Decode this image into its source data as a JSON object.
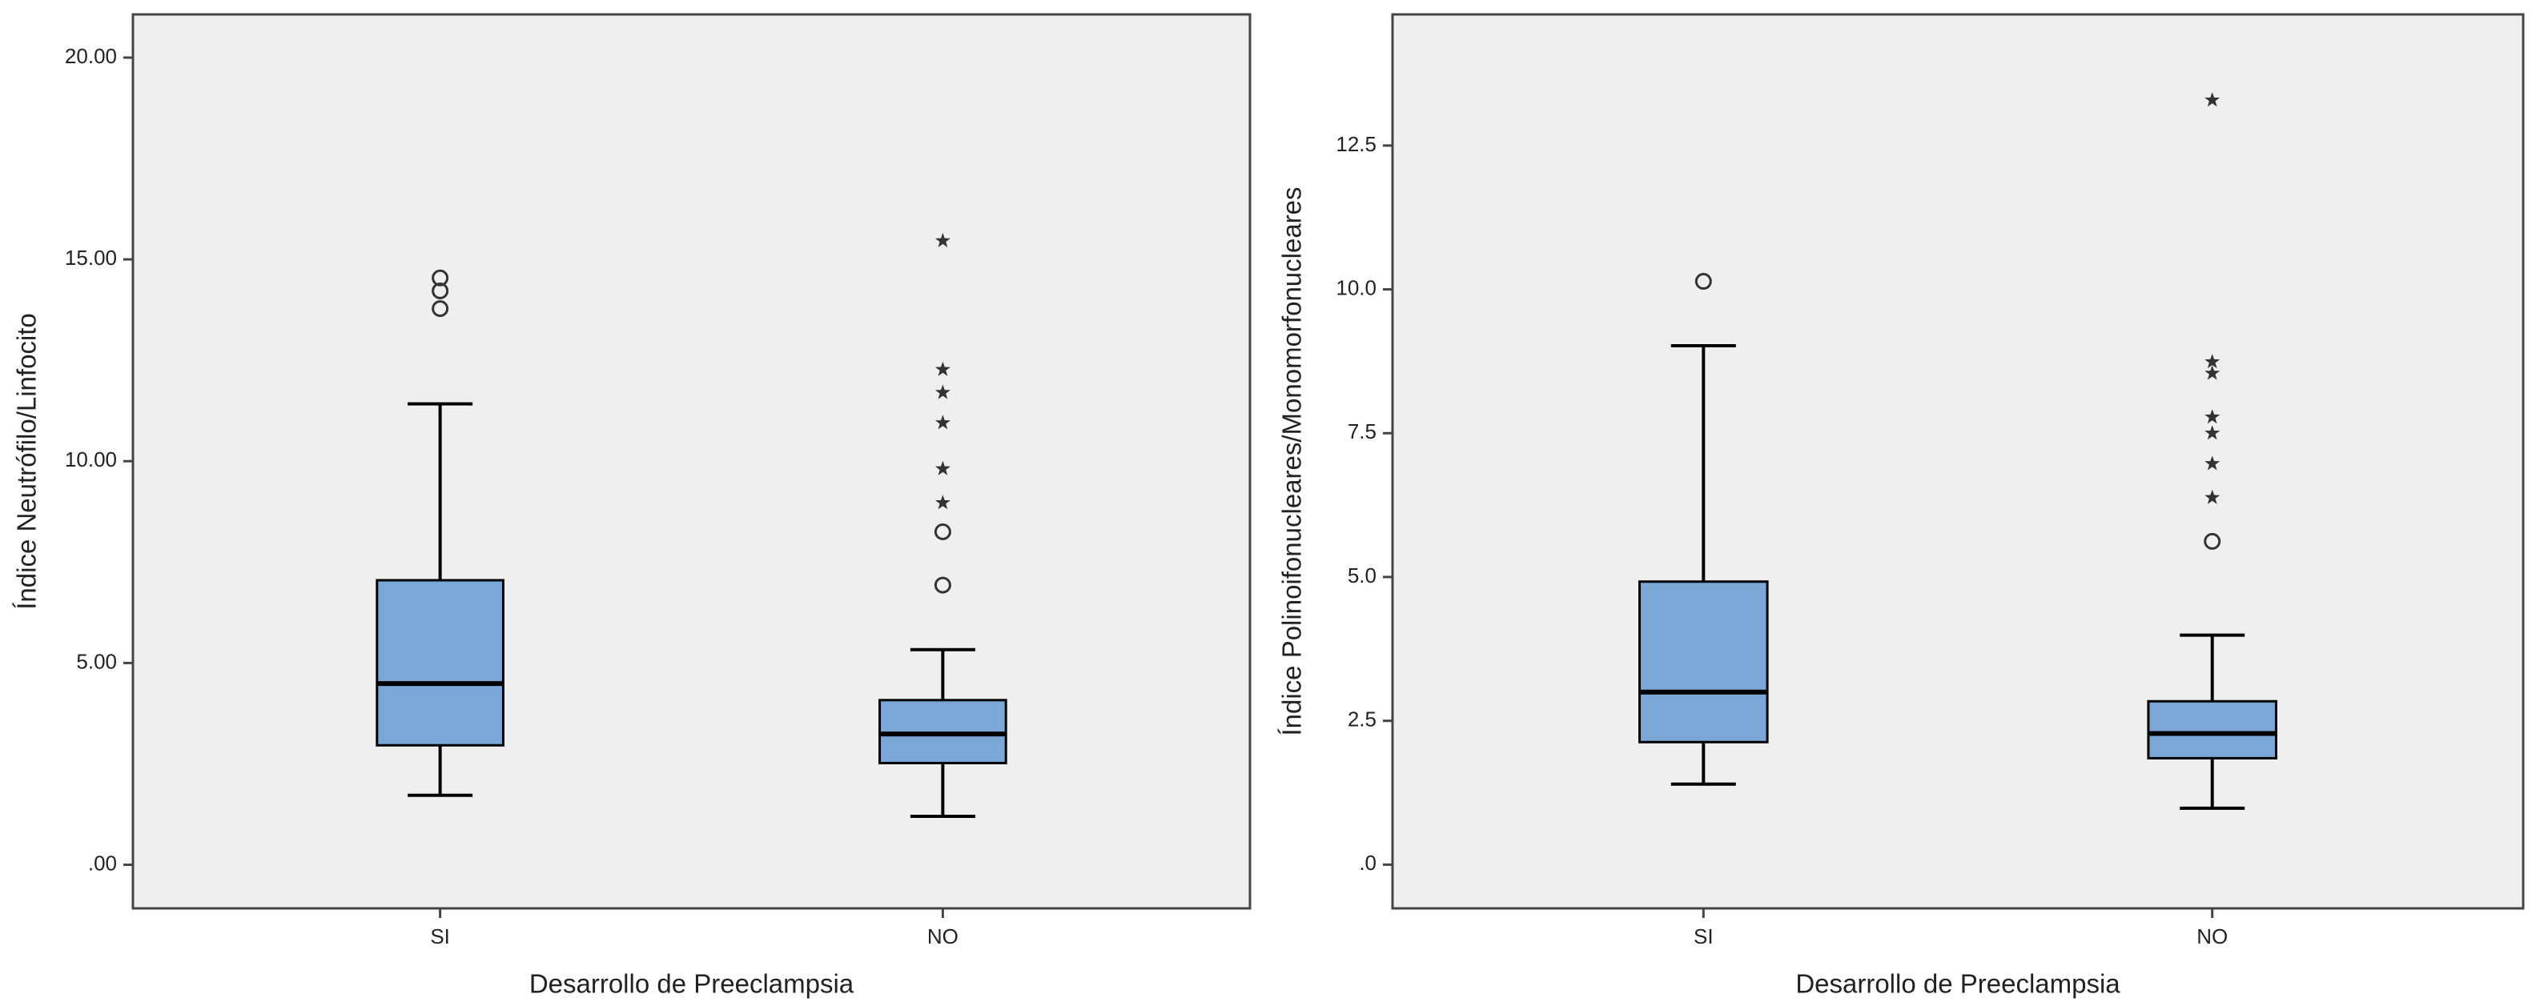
{
  "chart_data": [
    {
      "type": "box",
      "x_label": "Desarrollo de Preeclampsia",
      "y_label": "Índice Neutrófilo/Linfocito",
      "categories": [
        "SI",
        "NO"
      ],
      "ylim": [
        -1.08,
        21.07
      ],
      "yticks": [
        {
          "value": 0,
          "label": ".00"
        },
        {
          "value": 5,
          "label": "5.00"
        },
        {
          "value": 10,
          "label": "10.00"
        },
        {
          "value": 15,
          "label": "15.00"
        },
        {
          "value": 20,
          "label": "20.00"
        }
      ],
      "color": "#7aa7d6",
      "boxes": [
        {
          "whisker_low": 1.72,
          "q1": 2.96,
          "median": 4.49,
          "q3": 7.05,
          "whisker_high": 11.42,
          "outliers": [
            14.54,
            14.22,
            13.78
          ],
          "extremes": []
        },
        {
          "whisker_low": 1.2,
          "q1": 2.52,
          "median": 3.24,
          "q3": 4.08,
          "whisker_high": 5.33,
          "outliers": [
            6.93,
            8.25
          ],
          "extremes": [
            15.46,
            12.27,
            11.7,
            10.95,
            9.81,
            8.97
          ]
        }
      ]
    },
    {
      "type": "box",
      "x_label": "Desarrollo de Preeclampsia",
      "y_label": "Índice Polinoifonucleares/Monomorfonucleares",
      "categories": [
        "SI",
        "NO"
      ],
      "ylim": [
        -0.76,
        14.78
      ],
      "yticks": [
        {
          "value": 0,
          "label": ".0"
        },
        2.5,
        {
          "value": 5,
          "label": "5.0"
        },
        7.5,
        {
          "value": 10,
          "label": "10.0"
        },
        12.5
      ],
      "color": "#7aa7d6",
      "boxes": [
        {
          "whisker_low": 1.4,
          "q1": 2.13,
          "median": 3.0,
          "q3": 4.92,
          "whisker_high": 9.02,
          "outliers": [
            10.14
          ],
          "extremes": []
        },
        {
          "whisker_low": 0.98,
          "q1": 1.85,
          "median": 2.28,
          "q3": 2.84,
          "whisker_high": 3.99,
          "outliers": [
            5.62
          ],
          "extremes": [
            13.29,
            8.74,
            8.54,
            7.78,
            7.5,
            6.97,
            6.38
          ]
        }
      ]
    }
  ]
}
